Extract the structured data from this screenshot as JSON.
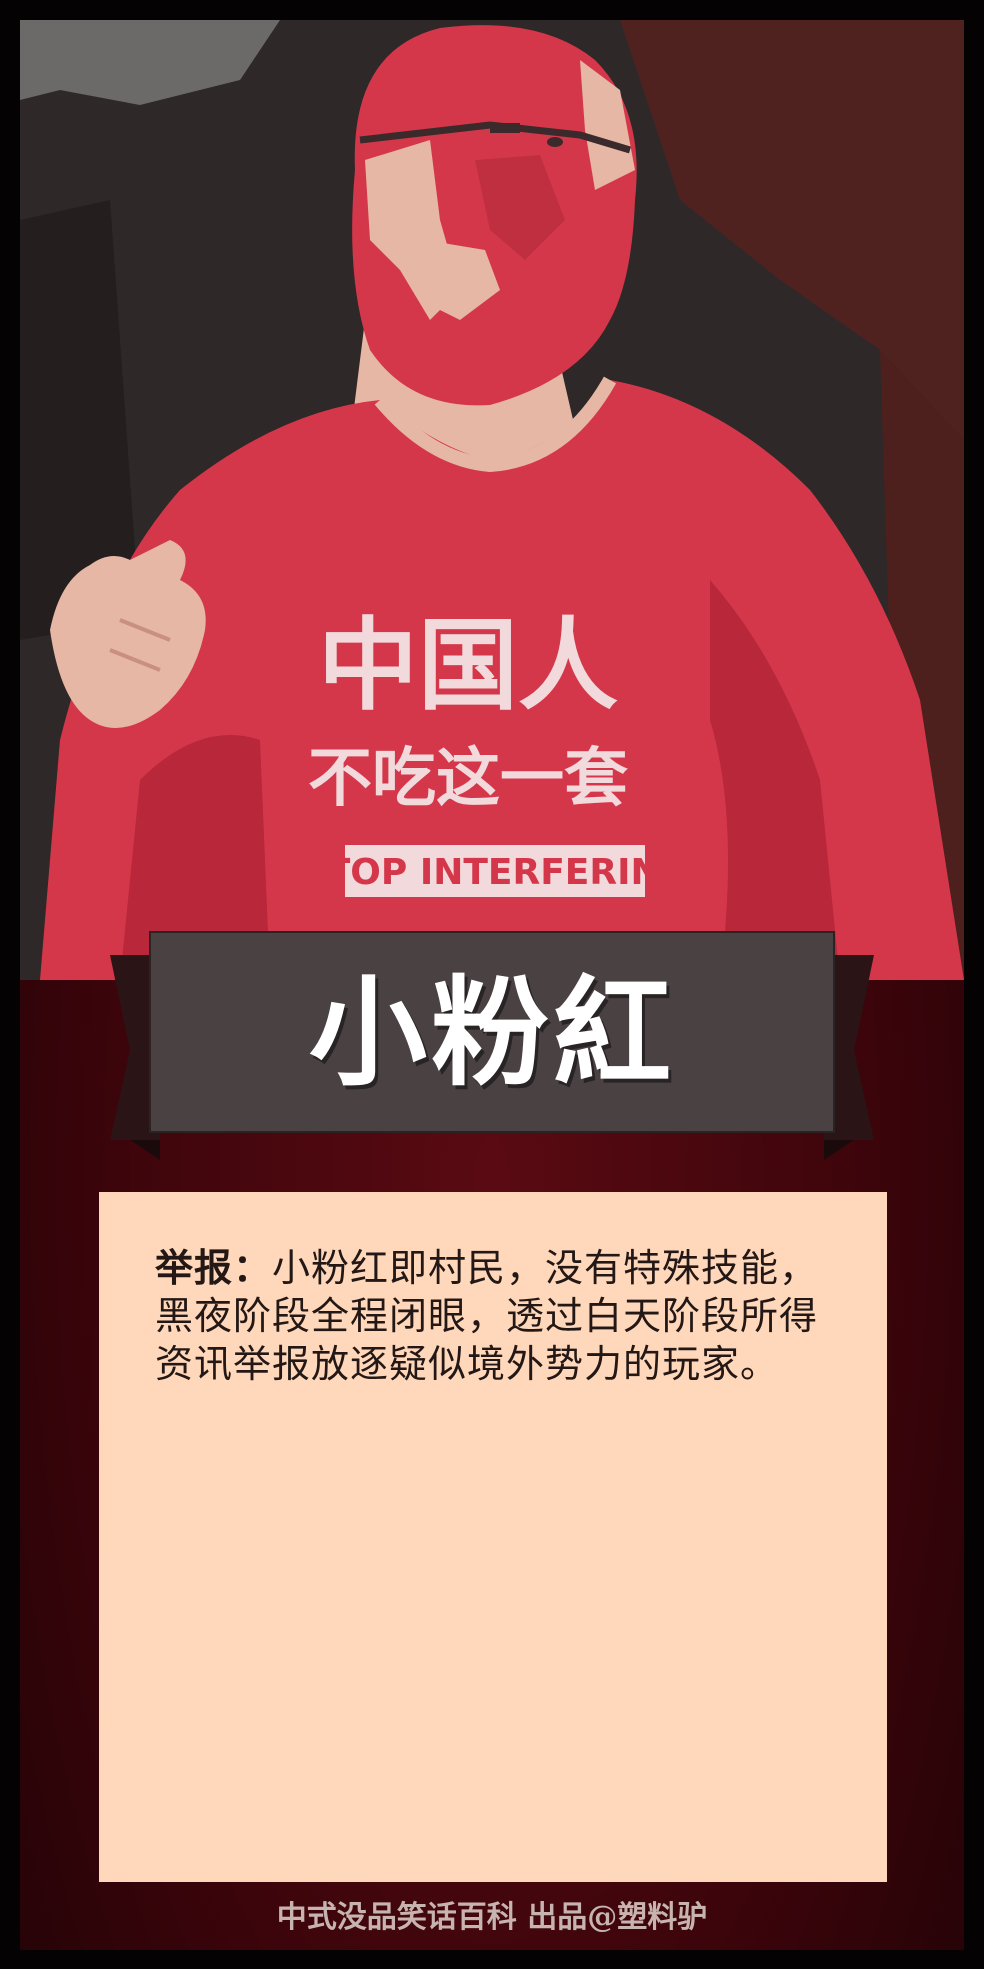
{
  "card": {
    "title": "小粉紅",
    "description_label": "举报：",
    "description_text": "小粉红即村民，没有特殊技能，黑夜阶段全程闭眼，透过白天阶段所得资讯举报放逐疑似境外势力的玩家。",
    "footer": "中式没品笑话百科  出品@塑料驴"
  },
  "portrait": {
    "shirt_line1": "中国人",
    "shirt_line2": "不吃这一套",
    "shirt_line3": "STOP INTERFERING"
  },
  "colors": {
    "frame": "#050203",
    "background": "#3d050b",
    "shirt_red": "#d5374a",
    "skin": "#e6b7a4",
    "banner": "#4a4143",
    "textbox": "#ffd8bc",
    "footer_text": "#c7b3b0"
  }
}
